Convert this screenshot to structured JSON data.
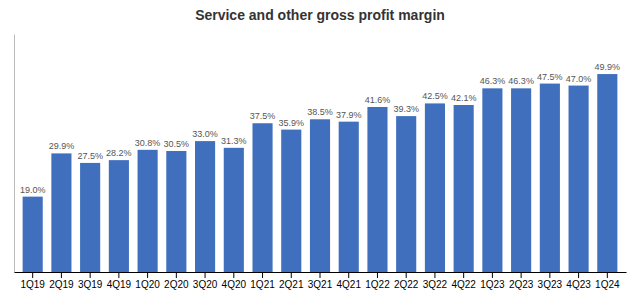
{
  "chart_data": {
    "type": "bar",
    "title": "Service and other gross profit margin",
    "categories": [
      "1Q19",
      "2Q19",
      "3Q19",
      "4Q19",
      "1Q20",
      "2Q20",
      "3Q20",
      "4Q20",
      "1Q21",
      "2Q21",
      "3Q21",
      "4Q21",
      "1Q22",
      "2Q22",
      "3Q22",
      "4Q22",
      "1Q23",
      "2Q23",
      "3Q23",
      "4Q23",
      "1Q24"
    ],
    "values": [
      19.0,
      29.9,
      27.5,
      28.2,
      30.8,
      30.5,
      33.0,
      31.3,
      37.5,
      35.9,
      38.5,
      37.9,
      41.6,
      39.3,
      42.5,
      42.1,
      46.3,
      46.3,
      47.5,
      47.0,
      49.9
    ],
    "value_labels": [
      "19.0%",
      "29.9%",
      "27.5%",
      "28.2%",
      "30.8%",
      "30.5%",
      "33.0%",
      "31.3%",
      "37.5%",
      "35.9%",
      "38.5%",
      "37.9%",
      "41.6%",
      "39.3%",
      "42.5%",
      "42.1%",
      "46.3%",
      "46.3%",
      "47.5%",
      "47.0%",
      "49.9%"
    ],
    "color": "#3F6FBD",
    "ylim": [
      0,
      60
    ],
    "data_labels": true,
    "tick_labels": "x",
    "grid": false
  }
}
